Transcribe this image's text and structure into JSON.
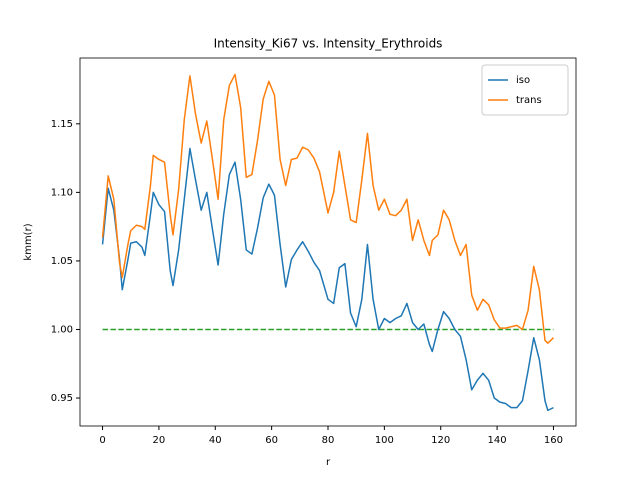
{
  "chart_data": {
    "type": "line",
    "title": "Intensity_Ki67 vs. Intensity_Erythroids",
    "x_label": "r",
    "y_label": "kmm(r)",
    "x": [
      0,
      2,
      4,
      6,
      7,
      9,
      10,
      12,
      14,
      15,
      17,
      18,
      20,
      22,
      24,
      25,
      27,
      29,
      31,
      33,
      35,
      37,
      39,
      41,
      43,
      45,
      47,
      49,
      51,
      53,
      55,
      57,
      59,
      61,
      63,
      65,
      67,
      69,
      71,
      73,
      75,
      77,
      80,
      82,
      84,
      86,
      88,
      90,
      92,
      94,
      96,
      98,
      100,
      102,
      104,
      106,
      108,
      110,
      112,
      114,
      116,
      117,
      119,
      121,
      123,
      125,
      127,
      129,
      131,
      133,
      135,
      137,
      139,
      141,
      143,
      145,
      147,
      149,
      151,
      153,
      155,
      157,
      158,
      160
    ],
    "series": [
      {
        "name": "iso",
        "color": "#1f77b4",
        "values": [
          1.062,
          1.103,
          1.087,
          1.052,
          1.029,
          1.051,
          1.063,
          1.064,
          1.06,
          1.054,
          1.084,
          1.1,
          1.091,
          1.086,
          1.043,
          1.032,
          1.058,
          1.095,
          1.132,
          1.109,
          1.087,
          1.1,
          1.073,
          1.047,
          1.084,
          1.113,
          1.122,
          1.095,
          1.058,
          1.055,
          1.074,
          1.096,
          1.106,
          1.098,
          1.062,
          1.031,
          1.051,
          1.058,
          1.064,
          1.057,
          1.049,
          1.043,
          1.022,
          1.019,
          1.045,
          1.048,
          1.012,
          1.002,
          1.022,
          1.062,
          1.022,
          1.0,
          1.008,
          1.005,
          1.008,
          1.01,
          1.019,
          1.005,
          1.0,
          1.004,
          0.989,
          0.984,
          1.0,
          1.013,
          1.008,
          1.0,
          0.995,
          0.978,
          0.956,
          0.963,
          0.968,
          0.963,
          0.95,
          0.947,
          0.946,
          0.943,
          0.943,
          0.948,
          0.97,
          0.994,
          0.978,
          0.948,
          0.941,
          0.943
        ]
      },
      {
        "name": "trans",
        "color": "#ff7f0e",
        "values": [
          1.067,
          1.112,
          1.095,
          1.049,
          1.038,
          1.062,
          1.072,
          1.076,
          1.075,
          1.073,
          1.105,
          1.127,
          1.124,
          1.122,
          1.084,
          1.069,
          1.102,
          1.153,
          1.185,
          1.157,
          1.136,
          1.152,
          1.124,
          1.095,
          1.153,
          1.178,
          1.186,
          1.162,
          1.111,
          1.113,
          1.138,
          1.168,
          1.181,
          1.171,
          1.124,
          1.105,
          1.124,
          1.125,
          1.133,
          1.131,
          1.125,
          1.115,
          1.085,
          1.1,
          1.13,
          1.105,
          1.08,
          1.078,
          1.109,
          1.143,
          1.105,
          1.087,
          1.095,
          1.084,
          1.083,
          1.087,
          1.095,
          1.065,
          1.08,
          1.065,
          1.054,
          1.065,
          1.069,
          1.087,
          1.08,
          1.065,
          1.054,
          1.062,
          1.025,
          1.014,
          1.022,
          1.018,
          1.007,
          1.001,
          1.001,
          1.002,
          1.003,
          1.0,
          1.014,
          1.046,
          1.029,
          0.992,
          0.99,
          0.994
        ]
      }
    ],
    "hline": {
      "y": 1.0,
      "xmin": 0,
      "xmax": 160,
      "color": "#2ca02c",
      "style": "dashed"
    },
    "xlim": [
      -8,
      168
    ],
    "ylim": [
      0.9296,
      1.198
    ],
    "xticks": [
      0,
      20,
      40,
      60,
      80,
      100,
      120,
      140,
      160
    ],
    "yticks": [
      0.95,
      {
        "value": 1.0,
        "label": "1.00"
      },
      1.05,
      {
        "value": 1.1,
        "label": "1.10"
      },
      1.15
    ],
    "legend": "upper right",
    "grid": false
  }
}
